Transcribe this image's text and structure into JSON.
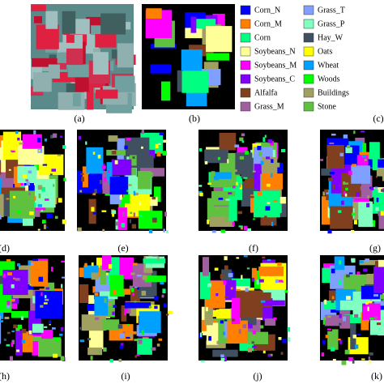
{
  "panels": [
    {
      "label": "(a)"
    },
    {
      "label": "(b)"
    },
    {
      "label": "(c)"
    },
    {
      "label": "(d)"
    },
    {
      "label": "(e)"
    },
    {
      "label": "(f)"
    },
    {
      "label": "(g)"
    },
    {
      "label": "(h)"
    },
    {
      "label": "(i)"
    },
    {
      "label": "(j)"
    },
    {
      "label": "(k)"
    }
  ],
  "legend": [
    {
      "name": "Corn_N",
      "color": "#0000ff"
    },
    {
      "name": "Corn_M",
      "color": "#ff8000"
    },
    {
      "name": "Corn",
      "color": "#00ff80"
    },
    {
      "name": "Soybeans_N",
      "color": "#ffff99"
    },
    {
      "name": "Soybeans_M",
      "color": "#ff00ff"
    },
    {
      "name": "Soybeans_C",
      "color": "#8000ff"
    },
    {
      "name": "Alfalfa",
      "color": "#804020"
    },
    {
      "name": "Grass_M",
      "color": "#a060a0"
    },
    {
      "name": "Grass_T",
      "color": "#80a0ff"
    },
    {
      "name": "Grass_P",
      "color": "#80ffc0"
    },
    {
      "name": "Hay_W",
      "color": "#405060"
    },
    {
      "name": "Oats",
      "color": "#ffff00"
    },
    {
      "name": "Wheat",
      "color": "#00a0ff"
    },
    {
      "name": "Woods",
      "color": "#00ff00"
    },
    {
      "name": "Buildings",
      "color": "#a0a060"
    },
    {
      "name": "Stone",
      "color": "#60c040"
    }
  ]
}
